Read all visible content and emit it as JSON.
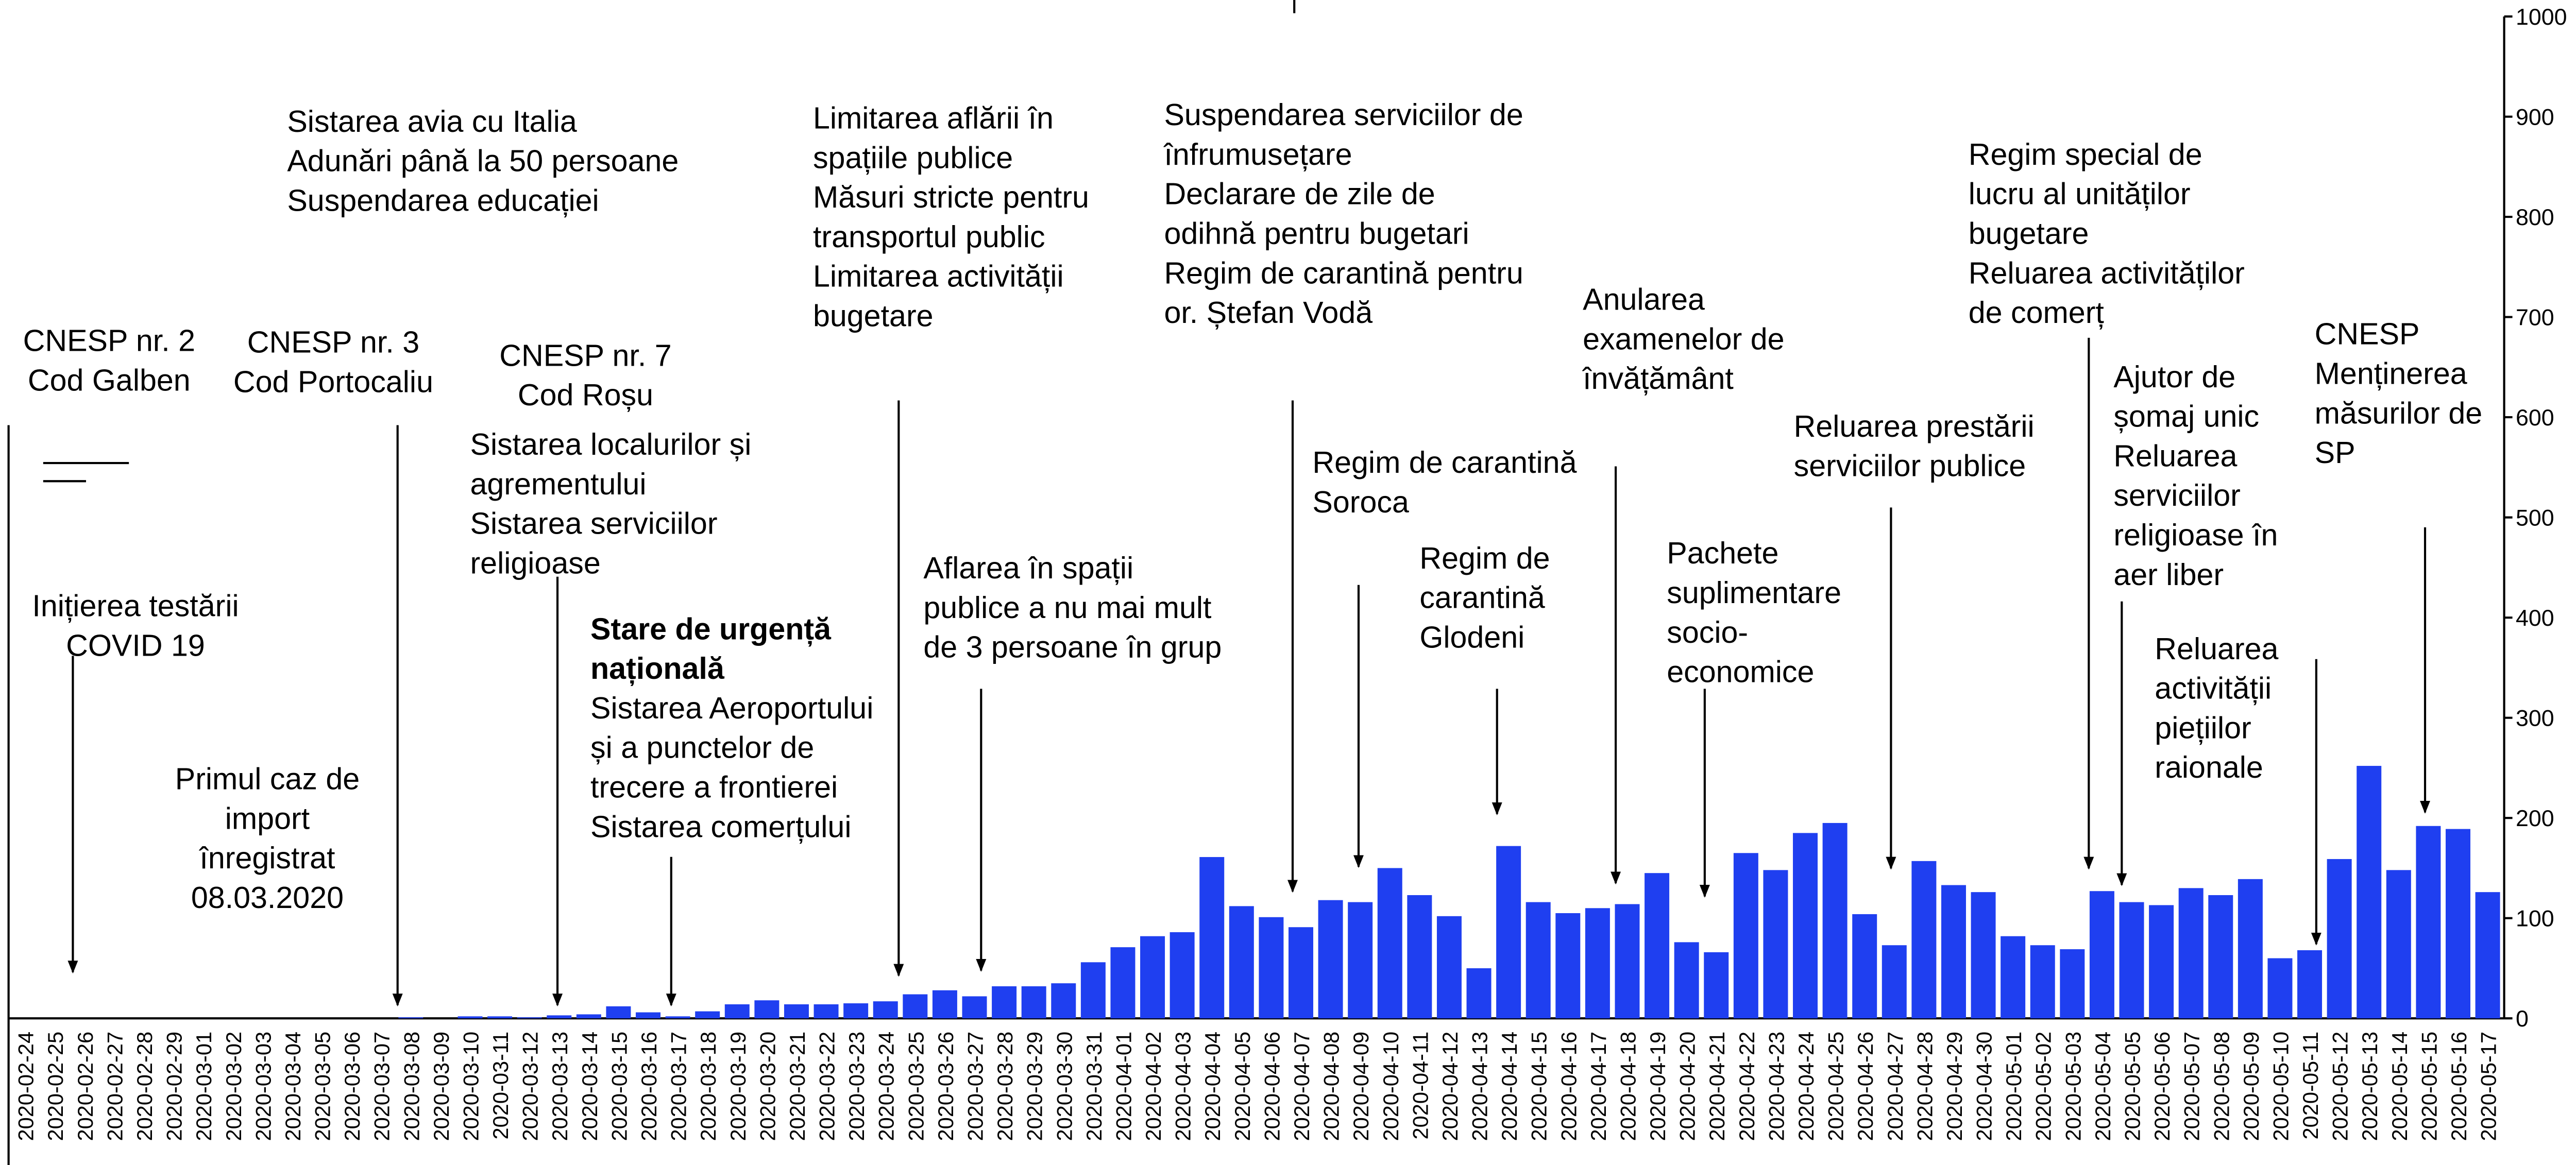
{
  "chart_data": {
    "type": "bar",
    "color": "#1f3ff0",
    "categories": [
      "2020-02-24",
      "2020-02-25",
      "2020-02-26",
      "2020-02-27",
      "2020-02-28",
      "2020-02-29",
      "2020-03-01",
      "2020-03-02",
      "2020-03-03",
      "2020-03-04",
      "2020-03-05",
      "2020-03-06",
      "2020-03-07",
      "2020-03-08",
      "2020-03-09",
      "2020-03-10",
      "2020-03-11",
      "2020-03-12",
      "2020-03-13",
      "2020-03-14",
      "2020-03-15",
      "2020-03-16",
      "2020-03-17",
      "2020-03-18",
      "2020-03-19",
      "2020-03-20",
      "2020-03-21",
      "2020-03-22",
      "2020-03-23",
      "2020-03-24",
      "2020-03-25",
      "2020-03-26",
      "2020-03-27",
      "2020-03-28",
      "2020-03-29",
      "2020-03-30",
      "2020-03-31",
      "2020-04-01",
      "2020-04-02",
      "2020-04-03",
      "2020-04-04",
      "2020-04-05",
      "2020-04-06",
      "2020-04-07",
      "2020-04-08",
      "2020-04-09",
      "2020-04-10",
      "2020-04-11",
      "2020-04-12",
      "2020-04-13",
      "2020-04-14",
      "2020-04-15",
      "2020-04-16",
      "2020-04-17",
      "2020-04-18",
      "2020-04-19",
      "2020-04-20",
      "2020-04-21",
      "2020-04-22",
      "2020-04-23",
      "2020-04-24",
      "2020-04-25",
      "2020-04-26",
      "2020-04-27",
      "2020-04-28",
      "2020-04-29",
      "2020-04-30",
      "2020-05-01",
      "2020-05-02",
      "2020-05-03",
      "2020-05-04",
      "2020-05-05",
      "2020-05-06",
      "2020-05-07",
      "2020-05-08",
      "2020-05-09",
      "2020-05-10",
      "2020-05-11",
      "2020-05-12",
      "2020-05-13",
      "2020-05-14",
      "2020-05-15",
      "2020-05-16",
      "2020-05-17"
    ],
    "values": [
      0,
      0,
      0,
      0,
      0,
      0,
      0,
      0,
      0,
      0,
      0,
      0,
      0,
      1,
      0,
      2,
      2,
      1,
      3,
      4,
      12,
      6,
      2,
      7,
      14,
      18,
      14,
      14,
      15,
      17,
      24,
      28,
      22,
      32,
      32,
      35,
      56,
      71,
      82,
      86,
      161,
      112,
      101,
      91,
      118,
      116,
      150,
      123,
      102,
      50,
      172,
      116,
      105,
      110,
      114,
      145,
      76,
      66,
      165,
      148,
      185,
      195,
      104,
      73,
      157,
      133,
      126,
      82,
      73,
      69,
      127,
      116,
      113,
      130,
      123,
      139,
      60,
      68,
      159,
      252,
      148,
      192,
      189,
      126
    ],
    "ylim": [
      0,
      1000
    ],
    "yticks": [
      0,
      100,
      200,
      300,
      400,
      500,
      600,
      700,
      800,
      900,
      1000
    ],
    "annotations": [
      {
        "lines": [
          "CNESP nr. 2",
          "Cod Galben"
        ]
      },
      {
        "lines": [
          "Inițierea testării",
          "COVID 19"
        ]
      },
      {
        "lines": [
          "Primul caz de",
          "import",
          "înregistrat",
          "08.03.2020"
        ]
      },
      {
        "lines": [
          "CNESP nr. 3",
          "Cod Portocaliu"
        ]
      },
      {
        "lines": [
          "Sistarea avia cu Italia",
          "Adunări până la 50 persoane",
          "Suspendarea educației"
        ]
      },
      {
        "lines": [
          "CNESP nr. 7",
          "Cod Roșu"
        ]
      },
      {
        "lines": [
          "Sistarea localurilor și",
          "agrementului",
          "Sistarea serviciilor",
          "religioase"
        ]
      },
      {
        "heading": [
          "Stare de urgență",
          "națională"
        ],
        "lines": [
          "Sistarea Aeroportului",
          "și a punctelor de",
          "trecere a frontierei",
          "Sistarea comerțului"
        ]
      },
      {
        "lines": [
          "Limitarea aflării în",
          "spațiile publice",
          "Măsuri stricte pentru",
          "transportul public",
          "Limitarea activității",
          "bugetare"
        ]
      },
      {
        "lines": [
          "Aflarea în spații",
          "publice a nu mai mult",
          "de 3 persoane în grup"
        ]
      },
      {
        "lines": [
          "Suspendarea serviciilor de",
          "înfrumusețare",
          "Declarare de zile de",
          "odihnă pentru bugetari",
          "Regim de carantină pentru",
          "or. Ștefan Vodă"
        ]
      },
      {
        "lines": [
          "Regim de carantină",
          "Soroca"
        ]
      },
      {
        "lines": [
          "Regim de",
          "carantină",
          "Glodeni"
        ]
      },
      {
        "lines": [
          "Anularea",
          "examenelor de",
          "învățământ"
        ]
      },
      {
        "lines": [
          "Pachete",
          "suplimentare",
          "socio-",
          "economice"
        ]
      },
      {
        "lines": [
          "Reluarea prestării",
          "serviciilor publice"
        ]
      },
      {
        "lines": [
          "Regim special de",
          "lucru al unităților",
          "bugetare",
          "Reluarea activităților",
          "de comerț"
        ]
      },
      {
        "lines": [
          "Ajutor de",
          "șomaj unic",
          "Reluarea",
          "serviciilor",
          "religioase în",
          "aer liber"
        ]
      },
      {
        "lines": [
          "Reluarea",
          "activității",
          "piețiilor",
          "raionale"
        ]
      },
      {
        "lines": [
          "CNESP",
          "Menținerea",
          "măsurilor de",
          "SP"
        ]
      }
    ]
  }
}
